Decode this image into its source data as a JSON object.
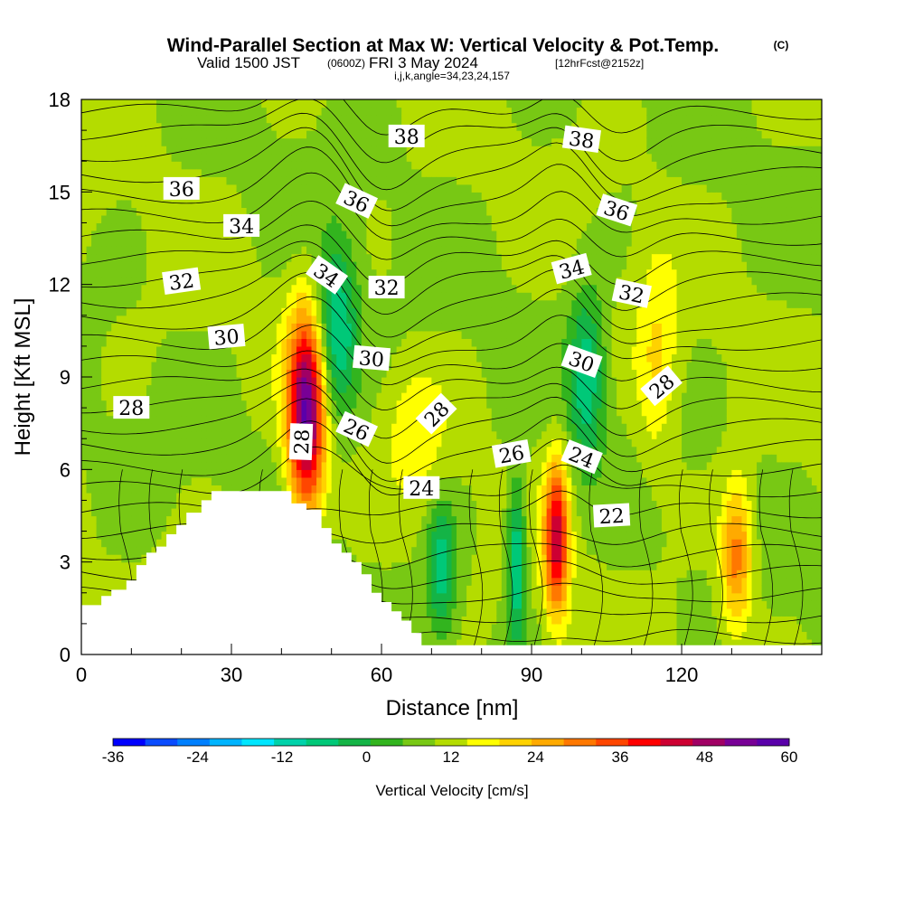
{
  "header": {
    "title": "Wind-Parallel Section at Max W: Vertical Velocity & Pot.Temp.",
    "copyright": "(C)",
    "valid_prefix": "Valid 1500 JST",
    "valid_z": "(0600Z)",
    "valid_date": "FRI 3 May 2024",
    "forecast": "[12hrFcst@2152z]",
    "indices": "i,j,k,angle=34,23,24,157"
  },
  "chart_data": {
    "type": "heatmap",
    "xlabel": "Distance [nm]",
    "ylabel": "Height [Kft MSL]",
    "xlim": [
      0,
      148
    ],
    "ylim": [
      0,
      18
    ],
    "x_ticks": [
      0,
      30,
      60,
      90,
      120
    ],
    "y_ticks": [
      0,
      3,
      6,
      9,
      12,
      15,
      18
    ],
    "colorbar": {
      "label": "Vertical Velocity [cm/s]",
      "min": -36,
      "max": 60,
      "step": 6,
      "tick_labels": [
        "-36",
        "-24",
        "-12",
        "0",
        "12",
        "24",
        "36",
        "48",
        "60"
      ],
      "colors": [
        "#0000ff",
        "#0a4cff",
        "#0080ff",
        "#00b4ff",
        "#00e6ff",
        "#00d2aa",
        "#00c878",
        "#14b446",
        "#32b41e",
        "#78c814",
        "#b4dc00",
        "#ffff00",
        "#ffd200",
        "#ffaa00",
        "#ff7800",
        "#ff4600",
        "#ff0000",
        "#cd0032",
        "#a00064",
        "#780096",
        "#5a00aa"
      ]
    },
    "vertical_velocity_features": [
      {
        "x": 45,
        "y": 7.8,
        "w_peak": 60,
        "sigma_x": 2.6,
        "sigma_y": 2.3
      },
      {
        "x": 95,
        "y": 3.8,
        "w_peak": 44,
        "sigma_x": 1.7,
        "sigma_y": 1.8
      },
      {
        "x": 131,
        "y": 3.2,
        "w_peak": 28,
        "sigma_x": 2.2,
        "sigma_y": 1.6
      },
      {
        "x": 51,
        "y": 10.5,
        "w_peak": -26,
        "sigma_x": 3.0,
        "sigma_y": 2.0
      },
      {
        "x": 101,
        "y": 9.0,
        "w_peak": -22,
        "sigma_x": 2.5,
        "sigma_y": 2.0
      },
      {
        "x": 72,
        "y": 2.8,
        "w_peak": -22,
        "sigma_x": 2.0,
        "sigma_y": 1.5
      },
      {
        "x": 87,
        "y": 3.0,
        "w_peak": -28,
        "sigma_x": 1.3,
        "sigma_y": 1.8
      },
      {
        "x": 67,
        "y": 7.2,
        "w_peak": 10,
        "sigma_x": 4.0,
        "sigma_y": 1.5
      },
      {
        "x": 115,
        "y": 9.5,
        "w_peak": 12,
        "sigma_x": 3.0,
        "sigma_y": 2.5
      }
    ],
    "terrain": [
      [
        0,
        1.6
      ],
      [
        4,
        1.6
      ],
      [
        4,
        1.9
      ],
      [
        6,
        1.9
      ],
      [
        6,
        2.1
      ],
      [
        9,
        2.1
      ],
      [
        9,
        2.4
      ],
      [
        11,
        2.4
      ],
      [
        11,
        2.9
      ],
      [
        13,
        2.9
      ],
      [
        13,
        3.3
      ],
      [
        15,
        3.3
      ],
      [
        15,
        3.5
      ],
      [
        17,
        3.5
      ],
      [
        17,
        3.9
      ],
      [
        19,
        3.9
      ],
      [
        19,
        4.2
      ],
      [
        21,
        4.2
      ],
      [
        21,
        4.6
      ],
      [
        24,
        4.6
      ],
      [
        24,
        5.0
      ],
      [
        26,
        5.0
      ],
      [
        26,
        5.3
      ],
      [
        42,
        5.3
      ],
      [
        42,
        4.9
      ],
      [
        45,
        4.9
      ],
      [
        45,
        4.7
      ],
      [
        48,
        4.7
      ],
      [
        48,
        4.1
      ],
      [
        50,
        4.1
      ],
      [
        50,
        3.6
      ],
      [
        52,
        3.6
      ],
      [
        52,
        3.3
      ],
      [
        54,
        3.3
      ],
      [
        54,
        3.0
      ],
      [
        56,
        3.0
      ],
      [
        56,
        2.6
      ],
      [
        58,
        2.6
      ],
      [
        58,
        2.0
      ],
      [
        60,
        2.0
      ],
      [
        60,
        1.7
      ],
      [
        62,
        1.7
      ],
      [
        62,
        1.4
      ],
      [
        64,
        1.4
      ],
      [
        64,
        1.1
      ],
      [
        66,
        1.1
      ],
      [
        66,
        0.7
      ],
      [
        68,
        0.7
      ],
      [
        68,
        0.3
      ],
      [
        148,
        0.3
      ]
    ],
    "theta_contour_labels": [
      {
        "text": "38",
        "x": 65,
        "y": 16.8,
        "angle": 0
      },
      {
        "text": "38",
        "x": 100,
        "y": 16.7,
        "angle": 8
      },
      {
        "text": "36",
        "x": 20,
        "y": 15.1,
        "angle": 0
      },
      {
        "text": "36",
        "x": 55,
        "y": 14.7,
        "angle": 25
      },
      {
        "text": "36",
        "x": 107,
        "y": 14.4,
        "angle": 18
      },
      {
        "text": "34",
        "x": 32,
        "y": 13.9,
        "angle": 0
      },
      {
        "text": "34",
        "x": 49,
        "y": 12.3,
        "angle": 35
      },
      {
        "text": "34",
        "x": 98,
        "y": 12.5,
        "angle": -15
      },
      {
        "text": "32",
        "x": 20,
        "y": 12.1,
        "angle": -8
      },
      {
        "text": "32",
        "x": 61,
        "y": 11.9,
        "angle": 0
      },
      {
        "text": "32",
        "x": 110,
        "y": 11.7,
        "angle": 12
      },
      {
        "text": "30",
        "x": 29,
        "y": 10.3,
        "angle": -5
      },
      {
        "text": "30",
        "x": 58,
        "y": 9.6,
        "angle": 5
      },
      {
        "text": "30",
        "x": 100,
        "y": 9.5,
        "angle": 20
      },
      {
        "text": "28",
        "x": 10,
        "y": 8.0,
        "angle": 0
      },
      {
        "text": "28",
        "x": 44,
        "y": 6.9,
        "angle": -88
      },
      {
        "text": "28",
        "x": 71,
        "y": 7.8,
        "angle": -45
      },
      {
        "text": "28",
        "x": 116,
        "y": 8.7,
        "angle": -40
      },
      {
        "text": "26",
        "x": 55,
        "y": 7.3,
        "angle": 25
      },
      {
        "text": "26",
        "x": 86,
        "y": 6.5,
        "angle": -10
      },
      {
        "text": "24",
        "x": 68,
        "y": 5.4,
        "angle": 0
      },
      {
        "text": "24",
        "x": 100,
        "y": 6.4,
        "angle": 22
      },
      {
        "text": "22",
        "x": 106,
        "y": 4.5,
        "angle": -3
      }
    ]
  }
}
